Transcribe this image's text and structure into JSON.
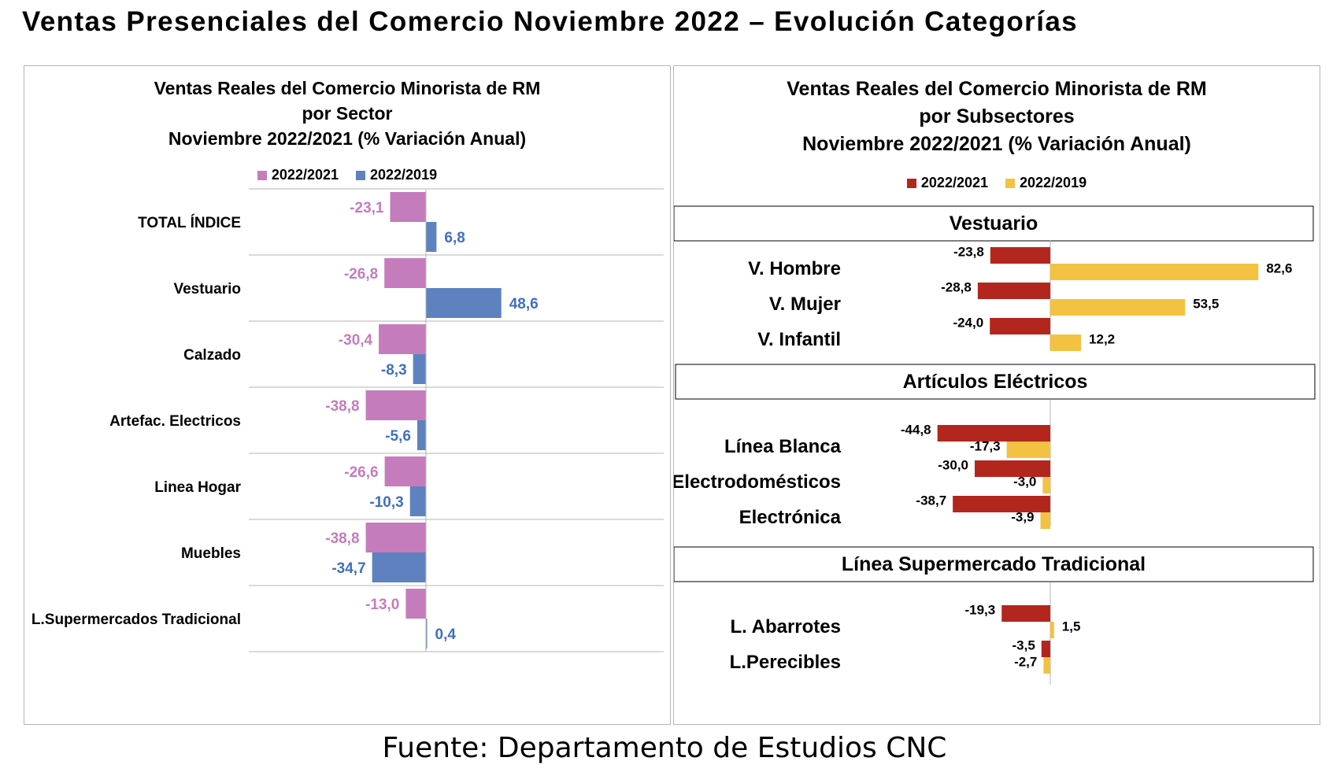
{
  "header": {
    "title": "Ventas Presenciales del Comercio Noviembre 2022 – Evolución Categorías"
  },
  "footer": {
    "source": "Fuente: Departamento de Estudios CNC"
  },
  "chart_data": [
    {
      "type": "bar",
      "orientation": "horizontal",
      "title_lines": [
        "Ventas Reales del Comercio Minorista de RM",
        "por Sector",
        "Noviembre 2022/2021 (% Variación Anual)"
      ],
      "categories": [
        "TOTAL ÍNDICE",
        "Vestuario",
        "Calzado",
        "Artefac. Electricos",
        "Linea Hogar",
        "Muebles",
        "L.Supermercados Tradicional"
      ],
      "series": [
        {
          "name": "2022/2021",
          "color": "#c57cbd",
          "label_color": "#c57cbd",
          "values": [
            -23.1,
            -26.8,
            -30.4,
            -38.8,
            -26.6,
            -38.8,
            -13.0
          ],
          "labels": [
            "-23,1",
            "-26,8",
            "-30,4",
            "-38,8",
            "-26,6",
            "-38,8",
            "-13,0"
          ]
        },
        {
          "name": "2022/2019",
          "color": "#5e82bf",
          "label_color": "#3f6fbf",
          "values": [
            6.8,
            48.6,
            -8.3,
            -5.6,
            -10.3,
            -34.7,
            0.4
          ],
          "labels": [
            "6,8",
            "48,6",
            "-8,3",
            "-5,6",
            "-10,3",
            "-34,7",
            "0,4"
          ]
        }
      ],
      "legend_position": "top",
      "grid": "horizontal separators"
    },
    {
      "type": "bar",
      "orientation": "horizontal",
      "title_lines": [
        "Ventas Reales del Comercio Minorista de RM",
        "por Subsectores",
        "Noviembre 2022/2021 (% Variación Anual)"
      ],
      "legend_position": "top",
      "series_meta": [
        {
          "name": "2022/2021",
          "color": "#b3261e"
        },
        {
          "name": "2022/2019",
          "color": "#f4c242"
        }
      ],
      "groups": [
        {
          "name": "Vestuario",
          "categories": [
            "V. Hombre",
            "V. Mujer",
            "V. Infantil"
          ],
          "values_2021": [
            -23.8,
            -28.8,
            -24.0
          ],
          "labels_2021": [
            "-23,8",
            "-28,8",
            "-24,0"
          ],
          "values_2019": [
            82.6,
            53.5,
            12.2
          ],
          "labels_2019": [
            "82,6",
            "53,5",
            "12,2"
          ]
        },
        {
          "name": "Artículos Eléctricos",
          "categories": [
            "Línea Blanca",
            "Electrodomésticos",
            "Electrónica"
          ],
          "values_2021": [
            -44.8,
            -30.0,
            -38.7
          ],
          "labels_2021": [
            "-44,8",
            "-30,0",
            "-38,7"
          ],
          "values_2019": [
            -17.3,
            -3.0,
            -3.9
          ],
          "labels_2019": [
            "-17,3",
            "-3,0",
            "-3,9"
          ]
        },
        {
          "name": "Línea Supermercado Tradicional",
          "categories": [
            "L. Abarrotes",
            "L.Perecibles"
          ],
          "values_2021": [
            -19.3,
            -3.5
          ],
          "labels_2021": [
            "-19,3",
            "-3,5"
          ],
          "values_2019": [
            1.5,
            -2.7
          ],
          "labels_2019": [
            "1,5",
            "-2,7"
          ]
        }
      ]
    }
  ]
}
